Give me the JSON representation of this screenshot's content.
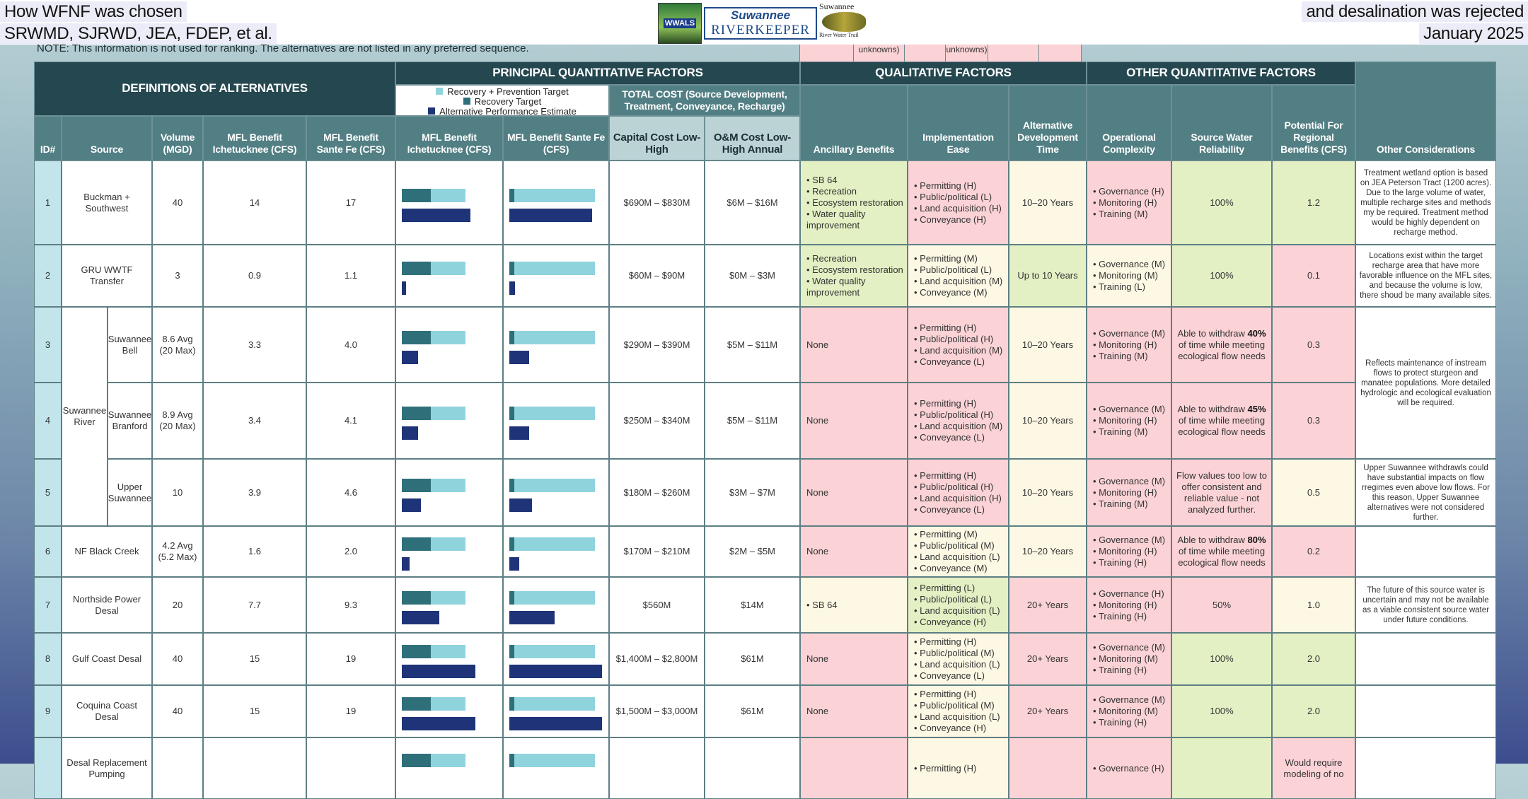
{
  "slide": {
    "title_left_1": "How WFNF was chosen",
    "title_left_2": "SRWMD, SJRWD, JEA, FDEP, et al.",
    "title_right_1": "and desalination was rejected",
    "title_right_2": "January 2025"
  },
  "logos": {
    "wwals": "WWALS",
    "riverkeeper_1": "Suwannee",
    "riverkeeper_2": "RIVERKEEPER",
    "trail_1": "Suwannee",
    "trail_2": "River Water Trail"
  },
  "note": "NOTE: This information is not used for ranking. The alternatives are not listed in any preferred sequence.",
  "background_fragment": [
    "unknowns)",
    "unknowns)"
  ],
  "headers": {
    "definitions": "DEFINITIONS OF ALTERNATIVES",
    "principal": "PRINCIPAL QUANTITATIVE FACTORS",
    "qualitative": "QUALITATIVE FACTORS",
    "other_quant": "OTHER QUANTITATIVE FACTORS",
    "legend": [
      "Recovery + Prevention Target",
      "Recovery Target",
      "Alternative Performance Estimate"
    ],
    "total_cost": "TOTAL COST (Source Development, Treatment, Conveyance, Recharge)",
    "columns": [
      "ID#",
      "Source",
      "Volume (MGD)",
      "MFL Benefit Ichetucknee (CFS)",
      "MFL Benefit Sante Fe (CFS)",
      "MFL Benefit Ichetucknee (CFS)",
      "MFL Benefit Sante Fe (CFS)",
      "Capital Cost Low-High",
      "O&M Cost Low-High Annual",
      "Ancillary Benefits",
      "Implementation Ease",
      "Alternative Development Time",
      "Operational Complexity",
      "Source Water Reliability",
      "Potential For Regional Benefits (CFS)",
      "Other Considerations"
    ]
  },
  "colors": {
    "recovery_prevention": "#8fd3dd",
    "recovery": "#2f6f7a",
    "performance": "#1f3478",
    "favorable": "#e3f0c4",
    "moderate": "#fdf8e4",
    "unfavorable": "#fbd3d6"
  },
  "source_group": "Suwannee River",
  "rows": [
    {
      "id": "1",
      "source": "Buckman + Southwest",
      "volume": "40",
      "mfl_ich": "14",
      "mfl_sf": "17",
      "capital": "$690M – $830M",
      "om": "$6M – $16M",
      "ancillary": [
        "SB 64",
        "Recreation",
        "Ecosystem restoration",
        "Water quality improvement"
      ],
      "implementation": [
        "Permitting (H)",
        "Public/political (L)",
        "Land acquisition (H)",
        "Conveyance (H)"
      ],
      "dev_time": "10–20 Years",
      "operational": [
        "Governance (H)",
        "Monitoring (H)",
        "Training (M)"
      ],
      "reliability": [
        "100%"
      ],
      "potential": "1.2",
      "other": "Treatment wetland option is based on JEA Peterson Tract (1200 acres). Due to the large volume of water, multiple recharge sites and methods my be required. Treatment method would be highly dependent on recharge method.",
      "shade": [
        "green",
        "pink",
        "cream",
        "pink",
        "green",
        "green"
      ]
    },
    {
      "id": "2",
      "source": "GRU WWTF Transfer",
      "volume": "3",
      "mfl_ich": "0.9",
      "mfl_sf": "1.1",
      "capital": "$60M – $90M",
      "om": "$0M – $3M",
      "ancillary": [
        "Recreation",
        "Ecosystem restoration",
        "Water quality improvement"
      ],
      "implementation": [
        "Permitting (M)",
        "Public/political (L)",
        "Land acquisition (M)",
        "Conveyance (M)"
      ],
      "dev_time": "Up to 10 Years",
      "operational": [
        "Governance (M)",
        "Monitoring (M)",
        "Training (L)"
      ],
      "reliability": [
        "100%"
      ],
      "potential": "0.1",
      "other": "Locations exist within the target recharge area that have more favorable influence on the MFL sites, and because the volume is low, there shoud be many available sites.",
      "shade": [
        "green",
        "cream",
        "green",
        "cream",
        "green",
        "pink"
      ]
    },
    {
      "id": "3",
      "source": "Suwannee Bell",
      "volume": "8.6 Avg (20 Max)",
      "mfl_ich": "3.3",
      "mfl_sf": "4.0",
      "capital": "$290M – $390M",
      "om": "$5M – $11M",
      "ancillary_text": "None",
      "implementation": [
        "Permitting (H)",
        "Public/political (H)",
        "Land acquisition (M)",
        "Conveyance (L)"
      ],
      "dev_time": "10–20 Years",
      "operational": [
        "Governance (M)",
        "Monitoring (H)",
        "Training (M)"
      ],
      "reliability": [
        "Able to withdraw ",
        "40%",
        " of time while meeting ecological flow needs"
      ],
      "potential": "0.3",
      "other": "Reflects maintenance of instream flows to protect sturgeon and manatee populations. More detailed hydrologic and ecological evaluation will be required.",
      "shade": [
        "pink",
        "pink",
        "cream",
        "pink",
        "pink",
        "pink"
      ]
    },
    {
      "id": "4",
      "source": "Suwannee Branford",
      "volume": "8.9 Avg (20 Max)",
      "mfl_ich": "3.4",
      "mfl_sf": "4.1",
      "capital": "$250M – $340M",
      "om": "$5M – $11M",
      "ancillary_text": "None",
      "implementation": [
        "Permitting (H)",
        "Public/political (H)",
        "Land acquisition (M)",
        "Conveyance (L)"
      ],
      "dev_time": "10–20 Years",
      "operational": [
        "Governance (M)",
        "Monitoring (H)",
        "Training (M)"
      ],
      "reliability": [
        "Able to withdraw ",
        "45%",
        " of time while meeting ecological flow needs"
      ],
      "potential": "0.3",
      "shade": [
        "pink",
        "pink",
        "cream",
        "pink",
        "pink",
        "pink"
      ]
    },
    {
      "id": "5",
      "source": "Upper Suwannee",
      "volume": "10",
      "mfl_ich": "3.9",
      "mfl_sf": "4.6",
      "capital": "$180M – $260M",
      "om": "$3M – $7M",
      "ancillary_text": "None",
      "implementation": [
        "Permitting (H)",
        "Public/political (H)",
        "Land acquisition (H)",
        "Conveyance (L)"
      ],
      "dev_time": "10–20 Years",
      "operational": [
        "Governance (M)",
        "Monitoring (H)",
        "Training (M)"
      ],
      "reliability": [
        "Flow values too low to offer consistent and reliable value - not analyzed further."
      ],
      "potential": "0.5",
      "other": "Upper Suwannee withdrawls could have substantial impacts on flow rregimes even above low flows.  For this reason, Upper Suwannee alternatives were not considered further.",
      "shade": [
        "pink",
        "pink",
        "cream",
        "pink",
        "pink",
        "cream"
      ]
    },
    {
      "id": "6",
      "source": "NF Black Creek",
      "volume": "4.2 Avg (5.2 Max)",
      "mfl_ich": "1.6",
      "mfl_sf": "2.0",
      "capital": "$170M – $210M",
      "om": "$2M – $5M",
      "ancillary_text": "None",
      "implementation": [
        "Permitting (M)",
        "Public/political (M)",
        "Land acquisition (L)",
        "Conveyance (M)"
      ],
      "dev_time": "10–20 Years",
      "operational": [
        "Governance (M)",
        "Monitoring (H)",
        "Training (H)"
      ],
      "reliability": [
        "Able to withdraw ",
        "80%",
        " of time while meeting ecological flow needs"
      ],
      "potential": "0.2",
      "other": "",
      "shade": [
        "pink",
        "cream",
        "cream",
        "pink",
        "pink",
        "pink"
      ]
    },
    {
      "id": "7",
      "source": "Northside Power Desal",
      "volume": "20",
      "mfl_ich": "7.7",
      "mfl_sf": "9.3",
      "capital": "$560M",
      "om": "$14M",
      "ancillary": [
        "SB 64"
      ],
      "implementation": [
        "Permitting (L)",
        "Public/political (L)",
        "Land acquisition (L)",
        "Conveyance (H)"
      ],
      "dev_time": "20+ Years",
      "operational": [
        "Governance (H)",
        "Monitoring (H)",
        "Training (H)"
      ],
      "reliability": [
        "50%"
      ],
      "potential": "1.0",
      "other": "The future of this source water is uncertain and may not be available as a viable consistent source water under future conditions.",
      "shade": [
        "cream",
        "green",
        "pink",
        "pink",
        "pink",
        "cream"
      ]
    },
    {
      "id": "8",
      "source": "Gulf Coast Desal",
      "volume": "40",
      "mfl_ich": "15",
      "mfl_sf": "19",
      "capital": "$1,400M – $2,800M",
      "om": "$61M",
      "ancillary_text": "None",
      "implementation": [
        "Permitting (H)",
        "Public/political (M)",
        "Land acquisition (L)",
        "Conveyance (L)"
      ],
      "dev_time": "20+ Years",
      "operational": [
        "Governance (M)",
        "Monitoring (M)",
        "Training (H)"
      ],
      "reliability": [
        "100%"
      ],
      "potential": "2.0",
      "other": "",
      "shade": [
        "pink",
        "cream",
        "pink",
        "pink",
        "green",
        "green"
      ]
    },
    {
      "id": "9",
      "source": "Coquina Coast Desal",
      "volume": "40",
      "mfl_ich": "15",
      "mfl_sf": "19",
      "capital": "$1,500M – $3,000M",
      "om": "$61M",
      "ancillary_text": "None",
      "implementation": [
        "Permitting (H)",
        "Public/political (M)",
        "Land acquisition (L)",
        "Conveyance (H)"
      ],
      "dev_time": "20+ Years",
      "operational": [
        "Governance (M)",
        "Monitoring (M)",
        "Training (H)"
      ],
      "reliability": [
        "100%"
      ],
      "potential": "2.0",
      "other": "",
      "shade": [
        "pink",
        "cream",
        "pink",
        "pink",
        "green",
        "green"
      ]
    },
    {
      "id": "",
      "source": "Desal Replacement Pumping",
      "volume": "",
      "mfl_ich": "",
      "mfl_sf": "",
      "capital": "",
      "om": "",
      "ancillary_text": "",
      "implementation": [
        "Permitting (H)"
      ],
      "dev_time": "",
      "operational": [
        "Governance (H)"
      ],
      "reliability": [
        ""
      ],
      "potential": "Would require modeling of no",
      "other": "",
      "shade": [
        "pink",
        "cream",
        "pink",
        "pink",
        "green",
        "pink"
      ]
    }
  ],
  "chart_data": {
    "type": "bar",
    "title": "",
    "legend": [
      "Recovery + Prevention Target",
      "Recovery Target",
      "Alternative Performance Estimate"
    ],
    "panels": [
      {
        "label": "MFL Benefit Ichetucknee (CFS)",
        "recovery_prevention_target": 13,
        "recovery_target": 6,
        "performance": [
          14,
          0.9,
          3.3,
          3.4,
          3.9,
          1.6,
          7.7,
          15,
          15
        ]
      },
      {
        "label": "MFL Benefit Sante Fe (CFS)",
        "recovery_prevention_target": 17.5,
        "recovery_target": 1,
        "performance": [
          17,
          1.1,
          4.0,
          4.1,
          4.6,
          2.0,
          9.3,
          19,
          19
        ]
      }
    ]
  }
}
